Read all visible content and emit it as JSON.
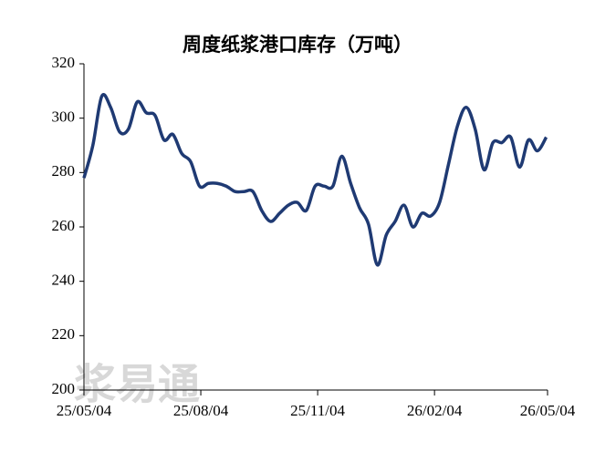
{
  "chart_data": {
    "type": "line",
    "title": "周度纸浆港口库存（万吨）",
    "watermark": "浆易通",
    "x": [
      "25/05/04",
      "25/05/11",
      "25/05/18",
      "25/05/25",
      "25/06/01",
      "25/06/08",
      "25/06/15",
      "25/06/22",
      "25/06/29",
      "25/07/06",
      "25/07/13",
      "25/07/20",
      "25/07/27",
      "25/08/03",
      "25/08/10",
      "25/08/17",
      "25/08/24",
      "25/08/31",
      "25/09/07",
      "25/09/14",
      "25/09/21",
      "25/09/28",
      "25/10/05",
      "25/10/12",
      "25/10/19",
      "25/10/26",
      "25/11/02",
      "25/11/09",
      "25/11/16",
      "25/11/23",
      "25/11/30",
      "25/12/07",
      "25/12/14",
      "25/12/21",
      "25/12/28",
      "26/01/04",
      "26/01/11",
      "26/01/18",
      "26/01/25",
      "26/02/01",
      "26/02/08",
      "26/02/15",
      "26/02/22",
      "26/03/01",
      "26/03/08",
      "26/03/15",
      "26/03/22",
      "26/03/29",
      "26/04/05",
      "26/04/12",
      "26/04/19",
      "26/04/26",
      "26/05/03"
    ],
    "series": [
      {
        "name": "港口库存",
        "color": "#1f3a73",
        "values": [
          278,
          290,
          308,
          304,
          295,
          296,
          306,
          302,
          301,
          292,
          294,
          287,
          284,
          275,
          276,
          276,
          275,
          273,
          273,
          273,
          266,
          262,
          265,
          268,
          269,
          266,
          275,
          275,
          275,
          286,
          276,
          267,
          261,
          246,
          257,
          262,
          268,
          260,
          265,
          264,
          269,
          283,
          297,
          304,
          296,
          281,
          291,
          291,
          293,
          282,
          292,
          288,
          293
        ]
      }
    ],
    "xlim": [
      "25/05/04",
      "26/05/04"
    ],
    "xticks": [
      "25/05/04",
      "25/08/04",
      "25/11/04",
      "26/02/04",
      "26/05/04"
    ],
    "ylim": [
      200,
      320
    ],
    "yticks": [
      200,
      220,
      240,
      260,
      280,
      300,
      320
    ],
    "grid": false,
    "legend": false
  }
}
